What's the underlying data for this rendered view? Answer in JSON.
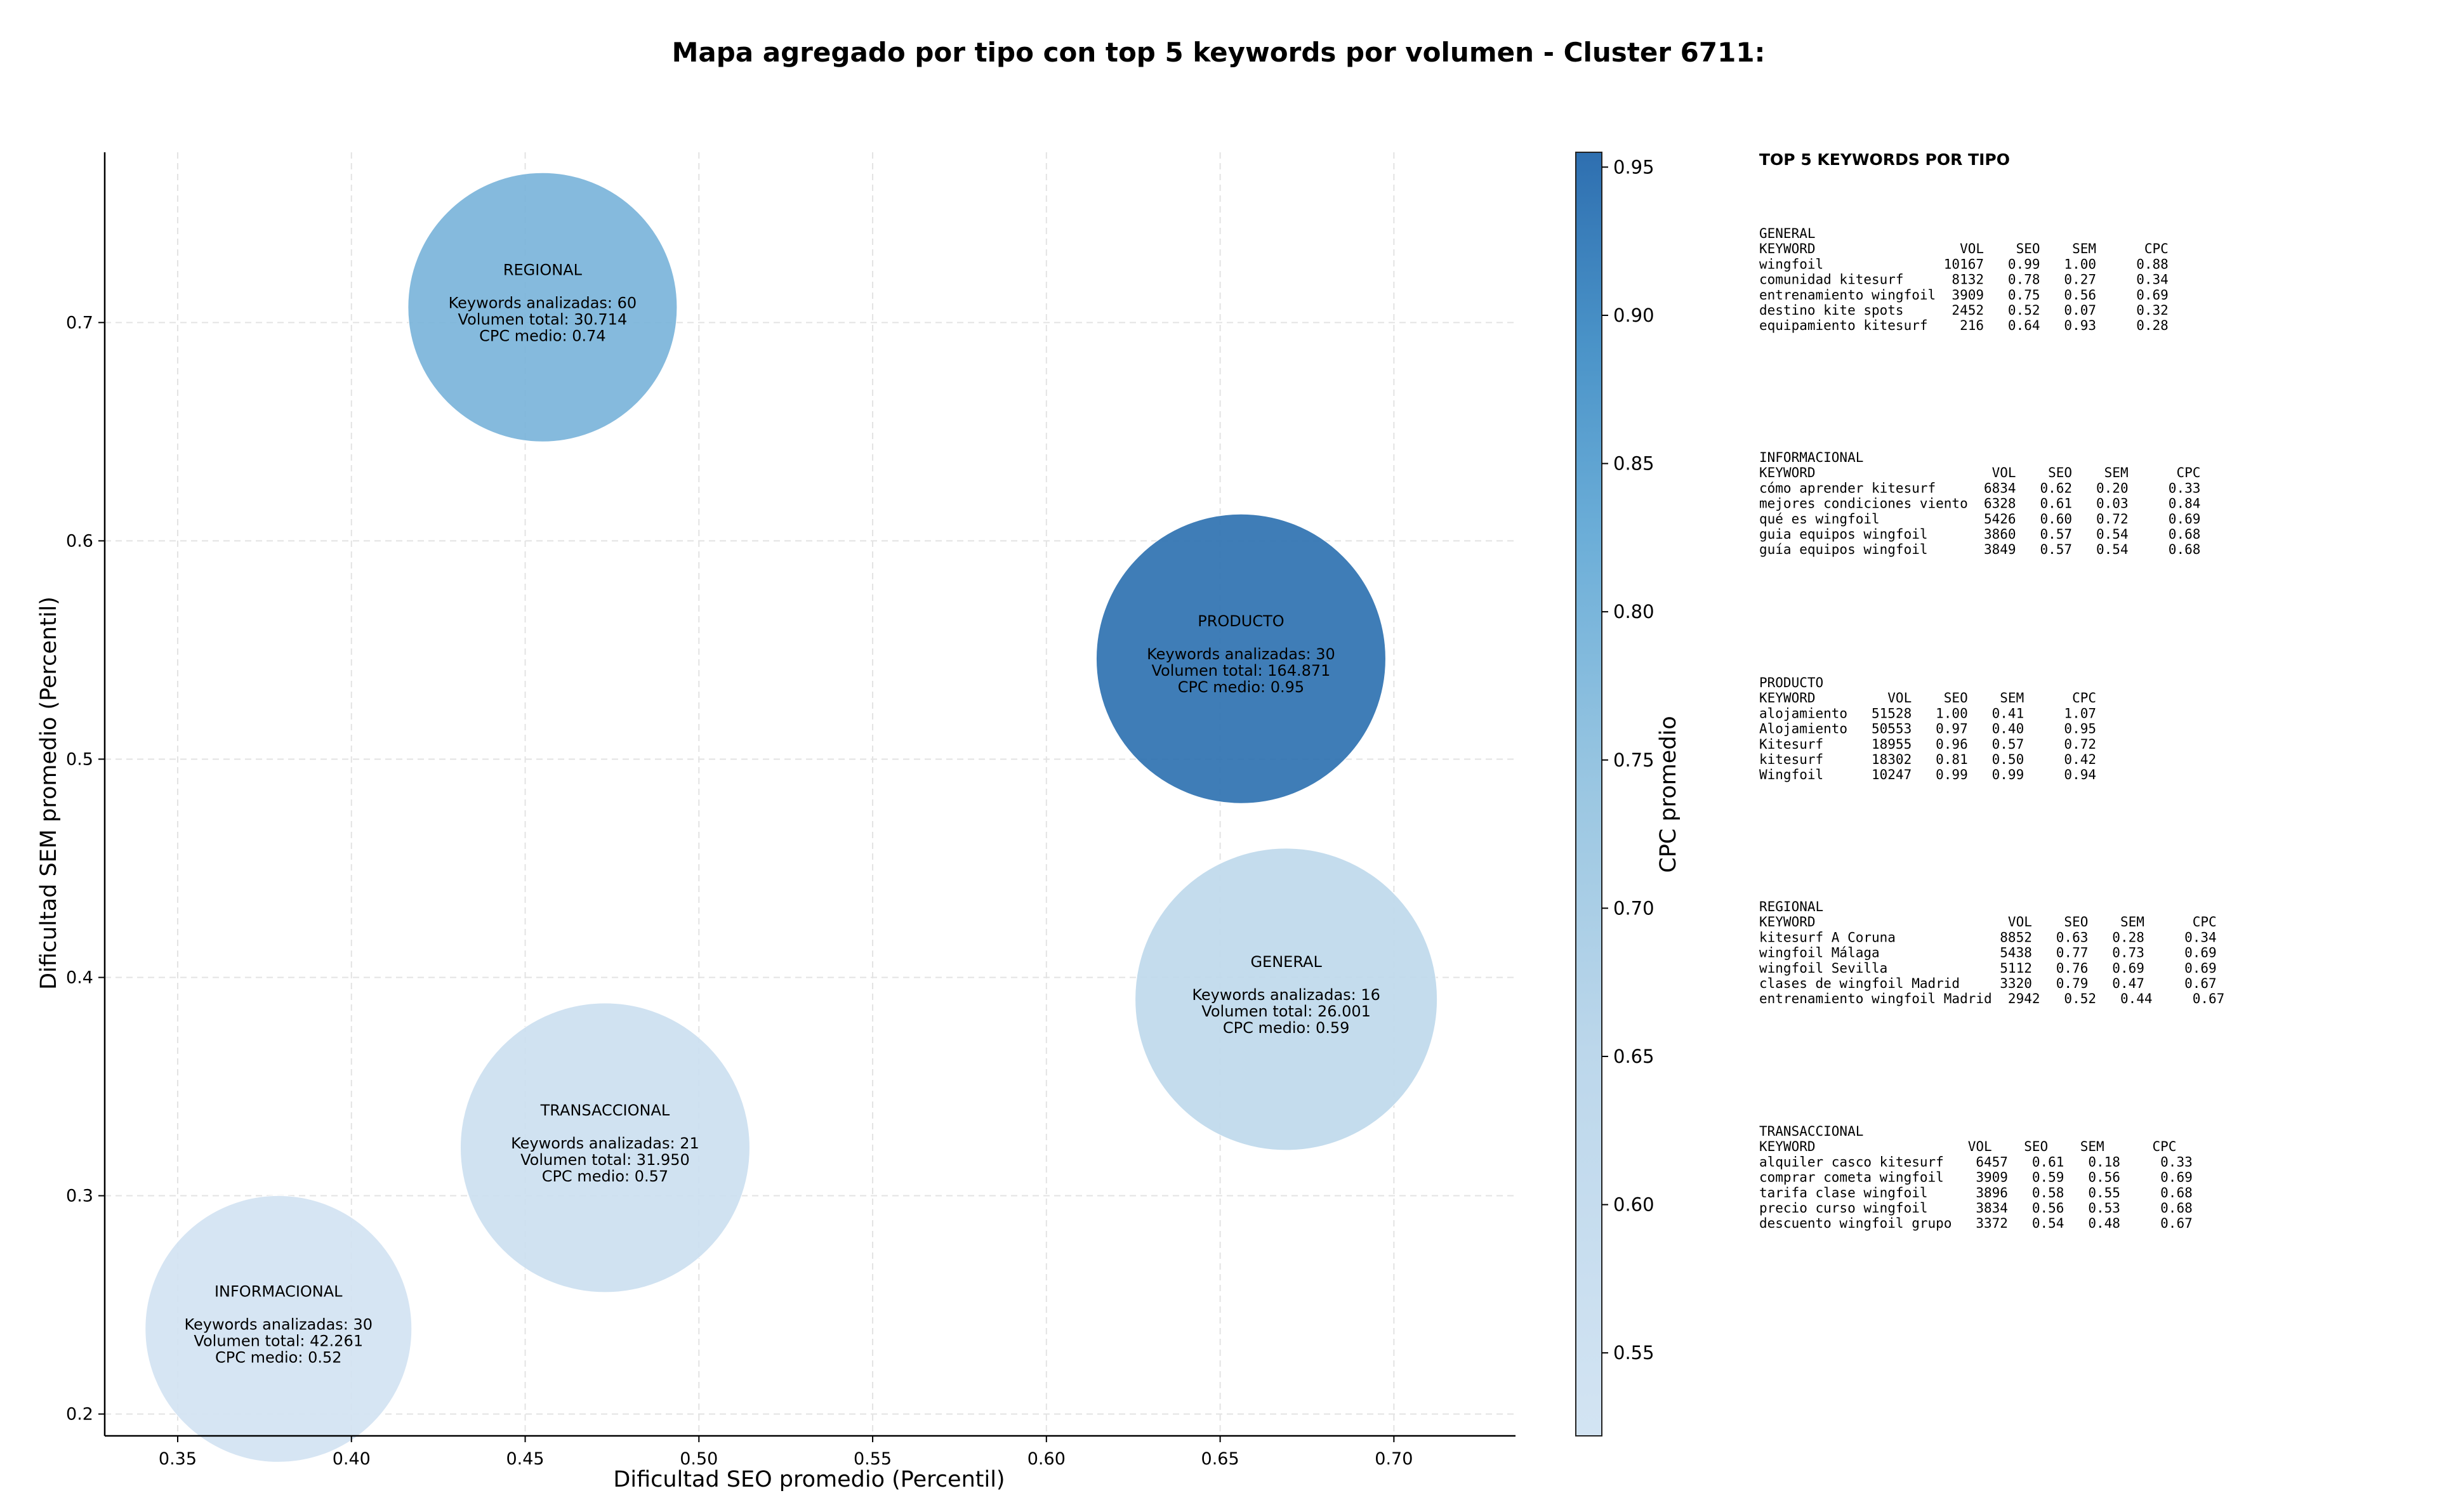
{
  "chart_data": {
    "type": "scatter",
    "title": "Mapa agregado por tipo con top 5 keywords por volumen - Cluster 6711:",
    "xlabel": "Dificultad SEO promedio (Percentil)",
    "ylabel": "Dificultad SEM promedio (Percentil)",
    "xlim": [
      0.329,
      0.735
    ],
    "ylim": [
      0.19,
      0.778
    ],
    "x_ticks": [
      "0.35",
      "0.40",
      "0.45",
      "0.50",
      "0.55",
      "0.60",
      "0.65",
      "0.70"
    ],
    "y_ticks": [
      "0.2",
      "0.3",
      "0.4",
      "0.5",
      "0.6",
      "0.7"
    ],
    "grid": true,
    "colorbar": {
      "label": "CPC promedio",
      "range": [
        0.522,
        0.955
      ],
      "ticks": [
        "0.55",
        "0.60",
        "0.65",
        "0.70",
        "0.75",
        "0.80",
        "0.85",
        "0.90",
        "0.95"
      ]
    },
    "bubbles": [
      {
        "label": "REGIONAL",
        "x": 0.455,
        "y": 0.707,
        "keywords": "Keywords analizadas: 60",
        "volume": "Volumen total: 30.714",
        "cpc_text": "CPC medio: 0.74",
        "cpc": 0.74,
        "color": "#7bb4da"
      },
      {
        "label": "PRODUCTO",
        "x": 0.656,
        "y": 0.546,
        "keywords": "Keywords analizadas: 30",
        "volume": "Volumen total: 164.871",
        "cpc_text": "CPC medio: 0.95",
        "cpc": 0.95,
        "color": "#2f72b1"
      },
      {
        "label": "GENERAL",
        "x": 0.669,
        "y": 0.39,
        "keywords": "Keywords analizadas: 16",
        "volume": "Volumen total: 26.001",
        "cpc_text": "CPC medio: 0.59",
        "cpc": 0.59,
        "color": "#bfd9ec"
      },
      {
        "label": "TRANSACCIONAL",
        "x": 0.473,
        "y": 0.322,
        "keywords": "Keywords analizadas: 21",
        "volume": "Volumen total: 31.950",
        "cpc_text": "CPC medio: 0.57",
        "cpc": 0.57,
        "color": "#ccdff0"
      },
      {
        "label": "INFORMACIONAL",
        "x": 0.379,
        "y": 0.239,
        "keywords": "Keywords analizadas: 30",
        "volume": "Volumen total: 42.261",
        "cpc_text": "CPC medio: 0.52",
        "cpc": 0.52,
        "color": "#d2e3f2"
      }
    ]
  },
  "panel": {
    "title": "TOP 5 KEYWORDS POR TIPO",
    "sections": [
      {
        "name": "GENERAL",
        "lines": [
          "KEYWORD                  VOL    SEO    SEM      CPC",
          "wingfoil               10167   0.99   1.00     0.88",
          "comunidad kitesurf      8132   0.78   0.27     0.34",
          "entrenamiento wingfoil  3909   0.75   0.56     0.69",
          "destino kite spots      2452   0.52   0.07     0.32",
          "equipamiento kitesurf    216   0.64   0.93     0.28"
        ]
      },
      {
        "name": "INFORMACIONAL",
        "lines": [
          "KEYWORD                      VOL    SEO    SEM      CPC",
          "cómo aprender kitesurf      6834   0.62   0.20     0.33",
          "mejores condiciones viento  6328   0.61   0.03     0.84",
          "qué es wingfoil             5426   0.60   0.72     0.69",
          "guia equipos wingfoil       3860   0.57   0.54     0.68",
          "guía equipos wingfoil       3849   0.57   0.54     0.68"
        ]
      },
      {
        "name": "PRODUCTO",
        "lines": [
          "KEYWORD         VOL    SEO    SEM      CPC",
          "alojamiento   51528   1.00   0.41     1.07",
          "Alojamiento   50553   0.97   0.40     0.95",
          "Kitesurf      18955   0.96   0.57     0.72",
          "kitesurf      18302   0.81   0.50     0.42",
          "Wingfoil      10247   0.99   0.99     0.94"
        ]
      },
      {
        "name": "REGIONAL",
        "lines": [
          "KEYWORD                        VOL    SEO    SEM      CPC",
          "kitesurf A Coruna             8852   0.63   0.28     0.34",
          "wingfoil Málaga               5438   0.77   0.73     0.69",
          "wingfoil Sevilla              5112   0.76   0.69     0.69",
          "clases de wingfoil Madrid     3320   0.79   0.47     0.67",
          "entrenamiento wingfoil Madrid  2942   0.52   0.44     0.67"
        ]
      },
      {
        "name": "TRANSACCIONAL",
        "lines": [
          "KEYWORD                   VOL    SEO    SEM      CPC",
          "alquiler casco kitesurf    6457   0.61   0.18     0.33",
          "comprar cometa wingfoil    3909   0.59   0.56     0.69",
          "tarifa clase wingfoil      3896   0.58   0.55     0.68",
          "precio curso wingfoil      3834   0.56   0.53     0.68",
          "descuento wingfoil grupo   3372   0.54   0.48     0.67"
        ]
      }
    ]
  }
}
